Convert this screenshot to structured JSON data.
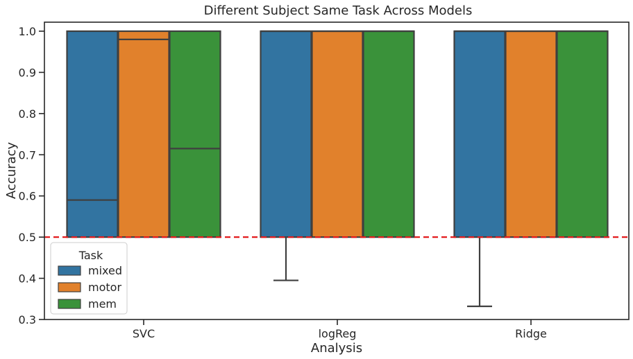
{
  "chart_data": {
    "type": "box",
    "title": "Different Subject Same Task Across Models",
    "xlabel": "Analysis",
    "ylabel": "Accuracy",
    "categories": [
      "SVC",
      "logReg",
      "Ridge"
    ],
    "ylim": [
      0.3,
      1.02
    ],
    "yticks": [
      "0.3",
      "0.4",
      "0.5",
      "0.6",
      "0.7",
      "0.8",
      "0.9",
      "1.0"
    ],
    "chance_line": {
      "value": 0.5,
      "color": "#e31a1c",
      "style": "dashed"
    },
    "legend": {
      "title": "Task",
      "position": "lower-left"
    },
    "series": [
      {
        "name": "mixed",
        "color": "#3274a1",
        "boxes": [
          {
            "q1": 0.5,
            "median": 0.59,
            "q3": 1.0,
            "whisker_low": 0.5,
            "whisker_high": 1.0
          },
          {
            "q1": 0.5,
            "median": 1.0,
            "q3": 1.0,
            "whisker_low": 0.395,
            "whisker_high": 1.0
          },
          {
            "q1": 0.5,
            "median": 1.0,
            "q3": 1.0,
            "whisker_low": 0.332,
            "whisker_high": 1.0
          }
        ]
      },
      {
        "name": "motor",
        "color": "#e1812c",
        "boxes": [
          {
            "q1": 0.5,
            "median": 0.98,
            "q3": 1.0,
            "whisker_low": 0.5,
            "whisker_high": 1.0
          },
          {
            "q1": 0.5,
            "median": 1.0,
            "q3": 1.0,
            "whisker_low": 0.5,
            "whisker_high": 1.0
          },
          {
            "q1": 0.5,
            "median": 1.0,
            "q3": 1.0,
            "whisker_low": 0.5,
            "whisker_high": 1.0
          }
        ]
      },
      {
        "name": "mem",
        "color": "#3a923a",
        "boxes": [
          {
            "q1": 0.5,
            "median": 0.715,
            "q3": 1.0,
            "whisker_low": 0.5,
            "whisker_high": 1.0
          },
          {
            "q1": 0.5,
            "median": 1.0,
            "q3": 1.0,
            "whisker_low": 0.5,
            "whisker_high": 1.0
          },
          {
            "q1": 0.5,
            "median": 1.0,
            "q3": 1.0,
            "whisker_low": 0.5,
            "whisker_high": 1.0
          }
        ]
      }
    ]
  }
}
